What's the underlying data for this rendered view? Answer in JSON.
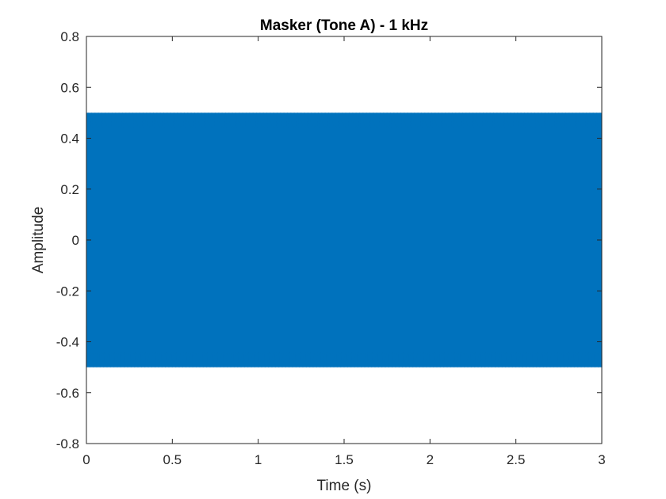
{
  "chart_data": {
    "type": "line",
    "title": "Masker (Tone A) - 1 kHz",
    "xlabel": "Time (s)",
    "ylabel": "Amplitude",
    "xlim": [
      0,
      3
    ],
    "ylim": [
      -0.8,
      0.8
    ],
    "xticks": [
      0,
      0.5,
      1,
      1.5,
      2,
      2.5,
      3
    ],
    "xtick_labels": [
      "0",
      "0.5",
      "1",
      "1.5",
      "2",
      "2.5",
      "3"
    ],
    "yticks": [
      -0.8,
      -0.6,
      -0.4,
      -0.2,
      0,
      0.2,
      0.4,
      0.6,
      0.8
    ],
    "ytick_labels": [
      "-0.8",
      "-0.6",
      "-0.4",
      "-0.2",
      "0",
      "0.2",
      "0.4",
      "0.6",
      "0.8"
    ],
    "grid": false,
    "box": true,
    "series": [
      {
        "signal": "sine",
        "frequency_hz": 1000,
        "amplitude": 0.5,
        "t_start": 0,
        "t_end": 3,
        "color": "#0072BD"
      }
    ]
  }
}
